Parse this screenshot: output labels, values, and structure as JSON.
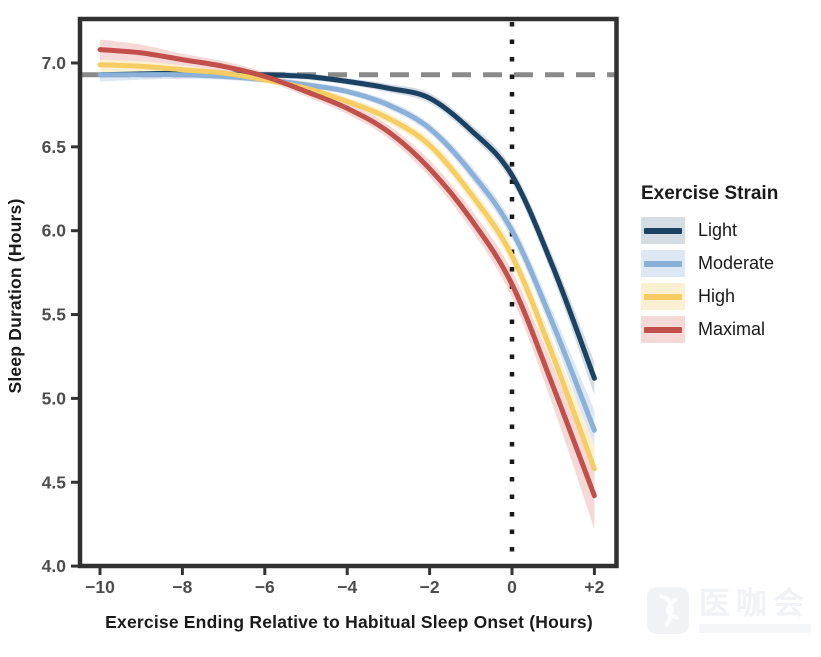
{
  "chart_data": {
    "type": "line",
    "title": "",
    "xlabel": "Exercise Ending Relative to Habitual Sleep Onset (Hours)",
    "ylabel": "Sleep Duration (Hours)",
    "xlim": [
      -10.5,
      2.55
    ],
    "ylim": [
      4.0,
      7.27
    ],
    "grid": "off",
    "x_ticks": [
      {
        "value": -10,
        "label": "−10"
      },
      {
        "value": -8,
        "label": "−8"
      },
      {
        "value": -6,
        "label": "−6"
      },
      {
        "value": -4,
        "label": "−4"
      },
      {
        "value": -2,
        "label": "−2"
      },
      {
        "value": 0,
        "label": "0"
      },
      {
        "value": 2,
        "label": "+2"
      }
    ],
    "y_ticks": [
      {
        "value": 7.0,
        "label": "7.0"
      },
      {
        "value": 6.5,
        "label": "6.5"
      },
      {
        "value": 6.0,
        "label": "6.0"
      },
      {
        "value": 5.5,
        "label": "5.5"
      },
      {
        "value": 5.0,
        "label": "5.0"
      },
      {
        "value": 4.5,
        "label": "4.5"
      },
      {
        "value": 4.0,
        "label": "4.0"
      }
    ],
    "x": [
      -10,
      -9,
      -8,
      -7,
      -6,
      -5,
      -4,
      -3,
      -2,
      -1,
      0,
      1,
      2
    ],
    "series": [
      {
        "name": "Light",
        "line_color": "#1b4262",
        "ribbon_color": "#d4dce4",
        "values": [
          6.93,
          6.935,
          6.94,
          6.935,
          6.93,
          6.92,
          6.89,
          6.85,
          6.79,
          6.6,
          6.33,
          5.78,
          5.12
        ],
        "half_width": [
          0.04,
          0.03,
          0.025,
          0.02,
          0.02,
          0.02,
          0.02,
          0.025,
          0.03,
          0.035,
          0.045,
          0.06,
          0.1
        ]
      },
      {
        "name": "Moderate",
        "line_color": "#8bb1d8",
        "ribbon_color": "#dde8f4",
        "values": [
          6.93,
          6.93,
          6.93,
          6.92,
          6.9,
          6.87,
          6.83,
          6.75,
          6.61,
          6.35,
          6.0,
          5.44,
          4.81
        ],
        "half_width": [
          0.04,
          0.03,
          0.025,
          0.02,
          0.02,
          0.02,
          0.02,
          0.025,
          0.03,
          0.04,
          0.05,
          0.07,
          0.12
        ]
      },
      {
        "name": "High",
        "line_color": "#f5cd62",
        "ribbon_color": "#fcf0d2",
        "values": [
          6.99,
          6.98,
          6.96,
          6.94,
          6.9,
          6.85,
          6.77,
          6.67,
          6.51,
          6.22,
          5.85,
          5.25,
          4.58
        ],
        "half_width": [
          0.05,
          0.04,
          0.03,
          0.025,
          0.02,
          0.02,
          0.025,
          0.03,
          0.035,
          0.045,
          0.055,
          0.08,
          0.14
        ]
      },
      {
        "name": "Maximal",
        "line_color": "#c2504a",
        "ribbon_color": "#f4d9d7",
        "values": [
          7.08,
          7.06,
          7.02,
          6.98,
          6.92,
          6.83,
          6.73,
          6.59,
          6.37,
          6.07,
          5.68,
          5.07,
          4.42
        ],
        "half_width": [
          0.06,
          0.05,
          0.035,
          0.03,
          0.025,
          0.03,
          0.035,
          0.04,
          0.05,
          0.06,
          0.08,
          0.12,
          0.2
        ]
      }
    ],
    "reference_lines": {
      "horizontal_dashed": {
        "y": 6.93,
        "color": "#8a8a8a",
        "style": "dashed"
      },
      "vertical_dotted": {
        "x": 0,
        "color": "#1a1a1a",
        "style": "dotted"
      }
    },
    "legend": {
      "title": "Exercise Strain",
      "position": "right",
      "entries": [
        "Light",
        "Moderate",
        "High",
        "Maximal"
      ]
    },
    "axis_colors": {
      "panel_border": "#303030",
      "tick_mark": "#333333",
      "tick_label": "#4d4d4d",
      "axis_title": "#1a1a1a"
    }
  },
  "watermark": {
    "text": "医咖会"
  }
}
